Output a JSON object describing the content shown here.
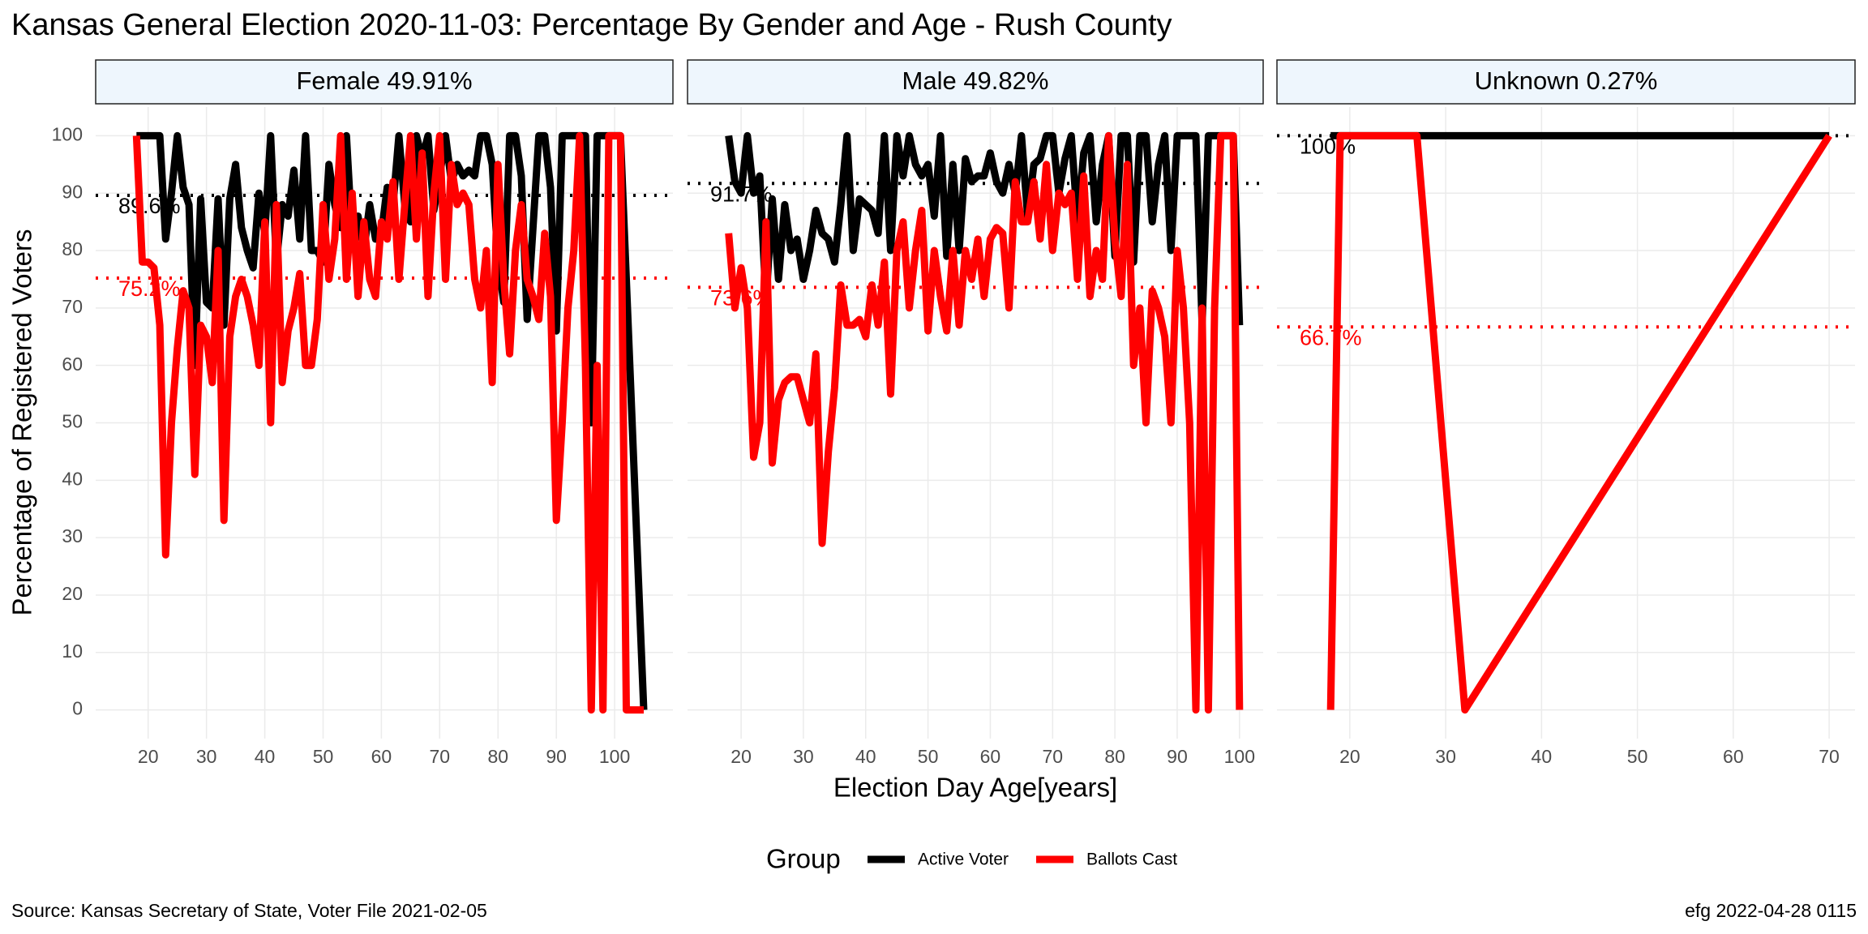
{
  "title": "Kansas General Election 2020-11-03:  Percentage By Gender and Age - Rush County",
  "y_label": "Percentage of Registered Voters",
  "x_label": "Election Day Age[years]",
  "legend_title": "Group",
  "legend_position": "bottom",
  "source": "Source:  Kansas Secretary of State, Voter File  2021-02-05",
  "stamp": "efg 2022-04-28 0115",
  "chart_data": [
    {
      "type": "line",
      "strip": "Female 49.91%",
      "x": [
        18,
        19,
        20,
        21,
        22,
        23,
        24,
        25,
        26,
        27,
        28,
        29,
        30,
        31,
        32,
        33,
        34,
        35,
        36,
        37,
        38,
        39,
        40,
        41,
        42,
        43,
        44,
        45,
        46,
        47,
        48,
        49,
        50,
        51,
        52,
        53,
        54,
        55,
        56,
        57,
        58,
        59,
        60,
        61,
        62,
        63,
        64,
        65,
        66,
        67,
        68,
        69,
        70,
        71,
        72,
        73,
        74,
        75,
        76,
        77,
        78,
        79,
        80,
        81,
        82,
        83,
        84,
        85,
        86,
        87,
        88,
        89,
        90,
        91,
        92,
        93,
        94,
        95,
        96,
        97,
        98,
        99,
        100,
        101,
        102,
        103,
        104,
        105
      ],
      "series": [
        {
          "name": "Active Voter",
          "color": "#000000",
          "values": [
            100,
            100,
            100,
            100,
            100,
            82,
            90,
            100,
            91,
            88,
            60,
            89,
            71,
            70,
            89,
            67,
            89,
            95,
            84,
            80,
            77,
            90,
            83,
            100,
            78,
            88,
            86,
            94,
            82,
            100,
            80,
            80,
            78,
            95,
            88,
            84,
            100,
            82,
            86,
            80,
            88,
            82,
            83,
            91,
            88,
            100,
            88,
            85,
            100,
            96,
            100,
            87,
            93,
            100,
            92,
            95,
            93,
            94,
            93,
            100,
            100,
            95,
            78,
            71,
            100,
            100,
            93,
            68,
            84,
            100,
            100,
            91,
            66,
            100,
            100,
            100,
            100,
            100,
            50,
            100,
            100,
            100,
            100,
            100,
            75,
            50,
            25,
            0
          ]
        },
        {
          "name": "Ballots Cast",
          "color": "#ff0000",
          "values": [
            100,
            78,
            78,
            77,
            67,
            27,
            50,
            63,
            73,
            70,
            41,
            67,
            65,
            57,
            80,
            33,
            65,
            72,
            75,
            72,
            67,
            60,
            85,
            50,
            88,
            57,
            66,
            70,
            76,
            60,
            60,
            68,
            88,
            75,
            82,
            100,
            75,
            90,
            72,
            85,
            75,
            72,
            85,
            82,
            92,
            75,
            88,
            100,
            82,
            97,
            72,
            90,
            100,
            75,
            95,
            88,
            90,
            88,
            75,
            70,
            80,
            57,
            95,
            75,
            62,
            80,
            88,
            75,
            72,
            68,
            83,
            72,
            33,
            50,
            70,
            80,
            100,
            60,
            0,
            60,
            0,
            100,
            100,
            100,
            0,
            0,
            0,
            0
          ]
        }
      ],
      "references": [
        {
          "value": 89.6,
          "label": "89.6%",
          "color": "#000000"
        },
        {
          "value": 75.2,
          "label": "75.2%",
          "color": "#ff0000"
        }
      ],
      "xlim": [
        11,
        110
      ],
      "xticks": [
        20,
        30,
        40,
        50,
        60,
        70,
        80,
        90,
        100
      ],
      "ylim": [
        -5,
        105
      ],
      "yticks": [
        0,
        10,
        20,
        30,
        40,
        50,
        60,
        70,
        80,
        90,
        100
      ],
      "grid": true
    },
    {
      "type": "line",
      "strip": "Male 49.82%",
      "x": [
        18,
        19,
        20,
        21,
        22,
        23,
        24,
        25,
        26,
        27,
        28,
        29,
        30,
        31,
        32,
        33,
        34,
        35,
        36,
        37,
        38,
        39,
        40,
        41,
        42,
        43,
        44,
        45,
        46,
        47,
        48,
        49,
        50,
        51,
        52,
        53,
        54,
        55,
        56,
        57,
        58,
        59,
        60,
        61,
        62,
        63,
        64,
        65,
        66,
        67,
        68,
        69,
        70,
        71,
        72,
        73,
        74,
        75,
        76,
        77,
        78,
        79,
        80,
        81,
        82,
        83,
        84,
        85,
        86,
        87,
        88,
        89,
        90,
        91,
        92,
        93,
        94,
        95,
        96,
        97,
        98,
        99,
        100
      ],
      "series": [
        {
          "name": "Active Voter",
          "color": "#000000",
          "values": [
            100,
            92,
            90,
            100,
            90,
            93,
            71,
            89,
            75,
            88,
            80,
            82,
            75,
            80,
            87,
            83,
            82,
            78,
            88,
            100,
            80,
            89,
            88,
            87,
            83,
            100,
            80,
            100,
            93,
            100,
            95,
            93,
            95,
            86,
            100,
            79,
            95,
            80,
            96,
            92,
            93,
            93,
            97,
            92,
            90,
            95,
            90,
            100,
            86,
            95,
            96,
            100,
            100,
            90,
            96,
            100,
            85,
            97,
            100,
            85,
            95,
            100,
            79,
            100,
            100,
            78,
            100,
            100,
            85,
            95,
            100,
            80,
            100,
            100,
            100,
            100,
            67,
            100,
            100,
            100,
            100,
            100,
            67
          ]
        },
        {
          "name": "Ballots Cast",
          "color": "#ff0000",
          "values": [
            83,
            70,
            77,
            70,
            44,
            50,
            85,
            43,
            54,
            57,
            58,
            58,
            54,
            50,
            62,
            29,
            45,
            56,
            74,
            67,
            67,
            68,
            65,
            74,
            67,
            78,
            55,
            80,
            85,
            70,
            80,
            87,
            66,
            80,
            72,
            66,
            80,
            67,
            80,
            75,
            82,
            72,
            82,
            84,
            83,
            70,
            92,
            85,
            85,
            92,
            82,
            95,
            80,
            90,
            88,
            90,
            75,
            93,
            72,
            80,
            75,
            100,
            82,
            72,
            95,
            60,
            70,
            50,
            73,
            70,
            65,
            50,
            80,
            70,
            50,
            0,
            70,
            0,
            70,
            100,
            100,
            100,
            0
          ]
        }
      ],
      "references": [
        {
          "value": 91.7,
          "label": "91.7%",
          "color": "#000000"
        },
        {
          "value": 73.6,
          "label": "73.6%",
          "color": "#ff0000"
        }
      ],
      "xlim": [
        11.4,
        103.8
      ],
      "xticks": [
        20,
        30,
        40,
        50,
        60,
        70,
        80,
        90,
        100
      ],
      "ylim": [
        -5,
        105
      ],
      "yticks": [
        0,
        10,
        20,
        30,
        40,
        50,
        60,
        70,
        80,
        90,
        100
      ],
      "grid": true
    },
    {
      "type": "line",
      "strip": "Unknown 0.27%",
      "x": [
        18,
        19,
        27,
        32,
        70
      ],
      "series": [
        {
          "name": "Active Voter",
          "color": "#000000",
          "values": [
            100,
            100,
            100,
            100,
            100
          ]
        },
        {
          "name": "Ballots Cast",
          "color": "#ff0000",
          "values": [
            0,
            100,
            100,
            0,
            100
          ]
        }
      ],
      "references": [
        {
          "value": 100,
          "label": "100%",
          "color": "#000000"
        },
        {
          "value": 66.7,
          "label": "66.7%",
          "color": "#ff0000"
        }
      ],
      "xlim": [
        12.4,
        72.7
      ],
      "xticks": [
        20,
        30,
        40,
        50,
        60,
        70
      ],
      "ylim": [
        -5,
        105
      ],
      "yticks": [
        0,
        10,
        20,
        30,
        40,
        50,
        60,
        70,
        80,
        90,
        100
      ],
      "grid": true
    }
  ]
}
